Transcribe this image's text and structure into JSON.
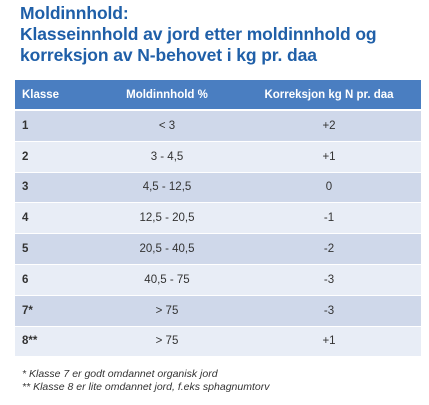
{
  "title": {
    "line1": "Moldinnhold:",
    "line2": "Klasseinnhold av jord etter moldinnhold og",
    "line3": "korreksjon av N-behovet i kg pr. daa"
  },
  "table": {
    "headers": [
      "Klasse",
      "Moldinnhold %",
      "Korreksjon kg N pr. daa"
    ],
    "rows": [
      [
        "1",
        "< 3",
        "+2"
      ],
      [
        "2",
        "3 - 4,5",
        "+1"
      ],
      [
        "3",
        "4,5 - 12,5",
        "0"
      ],
      [
        "4",
        "12,5 - 20,5",
        "-1"
      ],
      [
        "5",
        "20,5 - 40,5",
        "-2"
      ],
      [
        "6",
        "40,5 - 75",
        "-3"
      ],
      [
        "7*",
        "> 75",
        "-3"
      ],
      [
        "8**",
        "> 75",
        "+1"
      ]
    ]
  },
  "notes": {
    "note1": "*   Klasse 7 er godt omdannet organisk jord",
    "note2": "** Klasse 8 er lite omdannet jord,  f.eks sphagnumtorv"
  },
  "colors": {
    "title": "#1f5fa8",
    "header_bg": "#4a7ec1",
    "row_dark": "#cfd8ea",
    "row_light": "#e8edf6"
  }
}
